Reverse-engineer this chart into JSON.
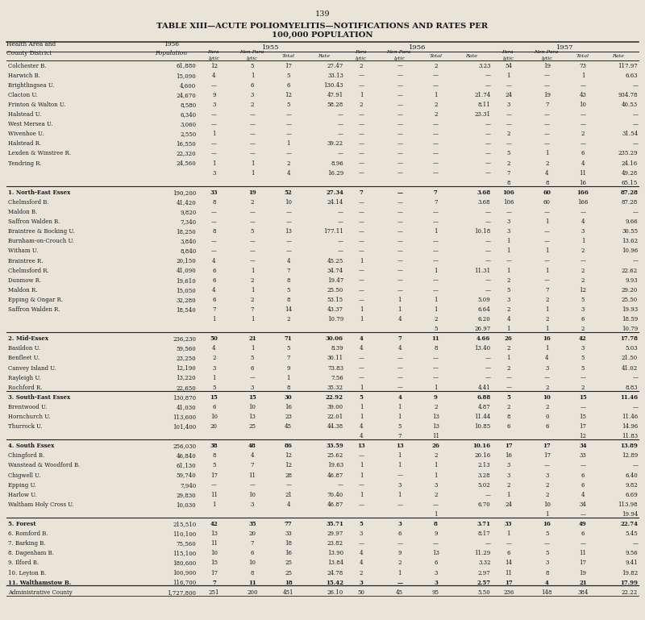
{
  "page_number": "139",
  "title_line1": "TABLE XIII—ACUTE POLIOMYELITIS—NOTIFICATIONS AND RATES PER",
  "title_line2": "100,000 POPULATION",
  "bg_color": "#e8e4d8",
  "text_color": "#1a1a1a",
  "rows": [
    [
      "Colchester B.",
      "61,880",
      "12",
      "5",
      "17",
      "27.47",
      "2",
      "—",
      "2",
      "3.23",
      "54",
      "19",
      "73",
      "117.97"
    ],
    [
      "Harwich B.",
      "15,090",
      "4",
      "1",
      "5",
      "33.13",
      "—",
      "—",
      "—",
      "—",
      "1",
      "—",
      "1",
      "6.63"
    ],
    [
      "Brightlingsea U.",
      "4,600",
      "—",
      "6",
      "6",
      "130.43",
      "—",
      "—",
      "—",
      "—",
      "—",
      "—",
      "—",
      "—"
    ],
    [
      "Clacton U.",
      "24,670",
      "9",
      "3",
      "12",
      "47.91",
      "1",
      "—",
      "1",
      "21.74",
      "24",
      "19",
      "43",
      "934.78"
    ],
    [
      "Frinton & Walton U.",
      "8,580",
      "3",
      "2",
      "5",
      "58.28",
      "2",
      "—",
      "2",
      "8.11",
      "3",
      "7",
      "10",
      "40.53"
    ],
    [
      "Halstead U.",
      "6,340",
      "—",
      "—",
      "—",
      "—",
      "—",
      "—",
      "2",
      "23.31",
      "—",
      "—",
      "—",
      "—"
    ],
    [
      "West Mersea U.",
      "3,060",
      "—",
      "—",
      "—",
      "—",
      "—",
      "—",
      "—",
      "—",
      "—",
      "—",
      "—",
      "—"
    ],
    [
      "Wivenhoe U.",
      "2,550",
      "1",
      "—",
      "—",
      "—",
      "—",
      "—",
      "—",
      "—",
      "2",
      "—",
      "2",
      "31.54"
    ],
    [
      "Halstead R.",
      "16,550",
      "—",
      "—",
      "1",
      "39.22",
      "—",
      "—",
      "—",
      "—",
      "—",
      "—",
      "—",
      "—"
    ],
    [
      "Lexden & Winstree R.",
      "22,320",
      "—",
      "—",
      "—",
      "—",
      "—",
      "—",
      "—",
      "—",
      "5",
      "1",
      "6",
      "235.29"
    ],
    [
      "Tendring R.",
      "24,560",
      "1",
      "1",
      "2",
      "8.96",
      "—",
      "—",
      "—",
      "—",
      "2",
      "2",
      "4",
      "24.16"
    ],
    [
      "",
      "",
      "3",
      "1",
      "4",
      "16.29",
      "—",
      "—",
      "—",
      "—",
      "7",
      "4",
      "11",
      "49.28"
    ],
    [
      "",
      "",
      "",
      "",
      "",
      "",
      "",
      "",
      "",
      "",
      "8",
      "8",
      "16",
      "65.15"
    ],
    [
      "1. North-East Essex",
      "190,200",
      "33",
      "19",
      "52",
      "27.34",
      "7",
      "—",
      "7",
      "3.68",
      "106",
      "60",
      "166",
      "87.28"
    ],
    [
      "Chelmsford B.",
      "41,420",
      "8",
      "2",
      "10",
      "24.14",
      "—",
      "—",
      "7",
      "3.68",
      "106",
      "60",
      "166",
      "87.28"
    ],
    [
      "Maldon B.",
      "9,820",
      "—",
      "—",
      "—",
      "—",
      "—",
      "—",
      "—",
      "—",
      "—",
      "—",
      "—",
      "—"
    ],
    [
      "Saffron Walden B.",
      "7,340",
      "—",
      "—",
      "—",
      "—",
      "—",
      "—",
      "—",
      "—",
      "3",
      "1",
      "4",
      "9.66"
    ],
    [
      "Braintree & Bocking U.",
      "18,250",
      "8",
      "5",
      "13",
      "177.11",
      "—",
      "—",
      "1",
      "10.18",
      "3",
      "—",
      "3",
      "30.55"
    ],
    [
      "Burnham-on-Crouch U.",
      "3,840",
      "—",
      "—",
      "—",
      "—",
      "—",
      "—",
      "—",
      "—",
      "1",
      "—",
      "1",
      "13.62"
    ],
    [
      "Witham U.",
      "8,840",
      "—",
      "—",
      "—",
      "—",
      "—",
      "—",
      "—",
      "—",
      "1",
      "1",
      "2",
      "10.96"
    ],
    [
      "Braintree R.",
      "20,150",
      "4",
      "—",
      "4",
      "45.25",
      "1",
      "—",
      "—",
      "—",
      "—",
      "—",
      "—",
      "—"
    ],
    [
      "Chelmsford R.",
      "41,090",
      "6",
      "1",
      "7",
      "34.74",
      "—",
      "—",
      "1",
      "11.31",
      "1",
      "1",
      "2",
      "22.62"
    ],
    [
      "Dunmow R.",
      "19,610",
      "6",
      "2",
      "8",
      "19.47",
      "—",
      "—",
      "—",
      "—",
      "2",
      "—",
      "2",
      "9.93"
    ],
    [
      "Maldon R.",
      "15,050",
      "4",
      "1",
      "5",
      "25.50",
      "—",
      "—",
      "—",
      "—",
      "5",
      "7",
      "12",
      "29.20"
    ],
    [
      "Epping & Ongar R.",
      "32,280",
      "6",
      "2",
      "8",
      "53.15",
      "—",
      "1",
      "1",
      "5.09",
      "3",
      "2",
      "5",
      "25.50"
    ],
    [
      "Saffron Walden R.",
      "18,540",
      "7",
      "7",
      "14",
      "43.37",
      "1",
      "1",
      "1",
      "6.64",
      "2",
      "1",
      "3",
      "19.93"
    ],
    [
      "",
      "",
      "1",
      "1",
      "2",
      "10.79",
      "1",
      "4",
      "2",
      "6.20",
      "4",
      "2",
      "6",
      "18.59"
    ],
    [
      "",
      "",
      "",
      "",
      "",
      "",
      "",
      "",
      "5",
      "26.97",
      "1",
      "1",
      "2",
      "10.79"
    ],
    [
      "2. Mid-Essex",
      "236,230",
      "50",
      "21",
      "71",
      "30.06",
      "4",
      "7",
      "11",
      "4.66",
      "26",
      "16",
      "42",
      "17.78"
    ],
    [
      "Basildon U.",
      "59,560",
      "4",
      "1",
      "5",
      "8.39",
      "4",
      "4",
      "8",
      "13.40",
      "2",
      "1",
      "3",
      "5.03"
    ],
    [
      "Benfleet U.",
      "23,250",
      "2",
      "5",
      "7",
      "30.11",
      "—",
      "—",
      "—",
      "—",
      "1",
      "4",
      "5",
      "21.50"
    ],
    [
      "Canvey Island U.",
      "12,190",
      "3",
      "6",
      "9",
      "73.83",
      "—",
      "—",
      "—",
      "—",
      "2",
      "3",
      "5",
      "41.02"
    ],
    [
      "Rayleigh U.",
      "13,220",
      "1",
      "—",
      "1",
      "7.56",
      "—",
      "—",
      "—",
      "—",
      "—",
      "—",
      "—",
      "—"
    ],
    [
      "Rochford R.",
      "22,650",
      "5",
      "3",
      "8",
      "35.32",
      "1",
      "—",
      "1",
      "4.41",
      "—",
      "2",
      "2",
      "8.83"
    ],
    [
      "3. South-East Essex",
      "130,870",
      "15",
      "15",
      "30",
      "22.92",
      "5",
      "4",
      "9",
      "6.88",
      "5",
      "10",
      "15",
      "11.46"
    ],
    [
      "Brentwood U.",
      "41,030",
      "6",
      "10",
      "16",
      "39.00",
      "1",
      "1",
      "2",
      "4.87",
      "2",
      "2",
      "—",
      "—"
    ],
    [
      "Hornchurch U.",
      "113,600",
      "10",
      "13",
      "23",
      "22.01",
      "1",
      "1",
      "13",
      "11.44",
      "8",
      "0",
      "15",
      "11.46"
    ],
    [
      "Thurrock U.",
      "101,400",
      "20",
      "25",
      "45",
      "44.38",
      "4",
      "5",
      "13",
      "10.85",
      "6",
      "6",
      "17",
      "14.96"
    ],
    [
      "",
      "",
      "",
      "",
      "",
      "",
      "4",
      "7",
      "11",
      "",
      "",
      "",
      "12",
      "11.83"
    ],
    [
      "4. South Essex",
      "256,030",
      "38",
      "48",
      "86",
      "33.59",
      "13",
      "13",
      "26",
      "10.16",
      "17",
      "17",
      "34",
      "13.89"
    ],
    [
      "Chingford B.",
      "46,840",
      "8",
      "4",
      "12",
      "25.62",
      "—",
      "1",
      "2",
      "20.16",
      "16",
      "17",
      "33",
      "12.89"
    ],
    [
      "Wanstead & Woodford B.",
      "61,130",
      "5",
      "7",
      "12",
      "19.63",
      "1",
      "1",
      "1",
      "2.13",
      "3",
      "—",
      "—",
      "—"
    ],
    [
      "Chigwell U.",
      "59,740",
      "17",
      "11",
      "28",
      "46.87",
      "1",
      "—",
      "1",
      "3.28",
      "3",
      "3",
      "6",
      "6.40"
    ],
    [
      "Epping U.",
      "7,940",
      "—",
      "—",
      "—",
      "—",
      "—",
      "3",
      "3",
      "5.02",
      "2",
      "2",
      "6",
      "9.82"
    ],
    [
      "Harlow U.",
      "29,830",
      "11",
      "10",
      "21",
      "70.40",
      "1",
      "1",
      "2",
      "—",
      "1",
      "2",
      "4",
      "6.69"
    ],
    [
      "Waltham Holy Cross U.",
      "10,030",
      "1",
      "3",
      "4",
      "46.87",
      "—",
      "—",
      "—",
      "6.70",
      "24",
      "10",
      "34",
      "113.98"
    ],
    [
      "",
      "",
      "",
      "",
      "",
      "",
      "",
      "",
      "1",
      "",
      "",
      "1",
      "—",
      "19.94"
    ],
    [
      "5. Forest",
      "215,510",
      "42",
      "35",
      "77",
      "35.71",
      "5",
      "3",
      "8",
      "3.71",
      "33",
      "16",
      "49",
      "22.74"
    ],
    [
      "6. Romford B.",
      "110,100",
      "13",
      "20",
      "33",
      "29.97",
      "3",
      "6",
      "9",
      "8.17",
      "1",
      "5",
      "6",
      "5.45"
    ],
    [
      "7. Barking B.",
      "75,560",
      "11",
      "7",
      "18",
      "23.82",
      "—",
      "—",
      "—",
      "—",
      "—",
      "—",
      "—",
      "—"
    ],
    [
      "8. Dagenham B.",
      "115,100",
      "10",
      "6",
      "16",
      "13.90",
      "4",
      "9",
      "13",
      "11.29",
      "6",
      "5",
      "11",
      "9.56"
    ],
    [
      "9. Ilford B.",
      "180,600",
      "15",
      "10",
      "25",
      "13.84",
      "4",
      "2",
      "6",
      "3.32",
      "14",
      "3",
      "17",
      "9.41"
    ],
    [
      "10. Leyton B.",
      "100,900",
      "17",
      "8",
      "25",
      "24.78",
      "2",
      "1",
      "3",
      "2.97",
      "11",
      "8",
      "19",
      "19.82"
    ],
    [
      "11. Walthamstow B.",
      "116,700",
      "7",
      "11",
      "18",
      "15.42",
      "3",
      "—",
      "3",
      "2.57",
      "17",
      "4",
      "21",
      "17.99"
    ],
    [
      "Administrative County",
      "1,727,800",
      "251",
      "200",
      "451",
      "26.10",
      "50",
      "45",
      "95",
      "5.50",
      "236",
      "148",
      "384",
      "22.22"
    ]
  ]
}
